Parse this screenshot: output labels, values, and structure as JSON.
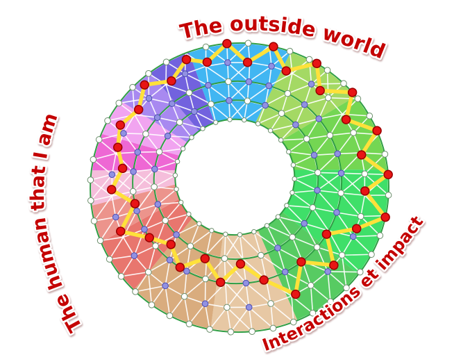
{
  "page": {
    "background": "#ffffff"
  },
  "diagram": {
    "labels": {
      "top": "The outside world",
      "left": "The human that I am",
      "bottom_right": "Interactions et impact"
    },
    "label_style": {
      "color": "#c40000",
      "outline": "#ffffff"
    },
    "colors": {
      "mesh_line": "#ffffff",
      "ring_outline": "#2f9e44",
      "path_highlight": "#ffe13a",
      "hole_fill": "#ffffff",
      "node_white_fill": "#ffffff",
      "node_white_stroke": "#6b8e6b",
      "node_purple_fill": "#9191e2",
      "node_purple_stroke": "#4c4cb0",
      "node_red_fill": "#e81515",
      "node_red_stroke": "#990000"
    },
    "sectors": [
      {
        "name": "sky-blue",
        "color": "#41b6f2",
        "start": -105,
        "end": -65
      },
      {
        "name": "yellow-green",
        "color": "#a4d964",
        "start": -65,
        "end": -34
      },
      {
        "name": "light-green",
        "color": "#74d653",
        "start": -34,
        "end": -2
      },
      {
        "name": "bright-green",
        "color": "#3fdf69",
        "start": -2,
        "end": 42
      },
      {
        "name": "green",
        "color": "#57cb62",
        "start": 42,
        "end": 72
      },
      {
        "name": "light-tan",
        "color": "#e7c8a4",
        "start": 72,
        "end": 106
      },
      {
        "name": "tan",
        "color": "#d9ac7e",
        "start": 106,
        "end": 140
      },
      {
        "name": "salmon",
        "color": "#e8766e",
        "start": 140,
        "end": 163
      },
      {
        "name": "light-salmon",
        "color": "#ec948c",
        "start": 163,
        "end": 178
      },
      {
        "name": "light-pink",
        "color": "#f5bedb",
        "start": 178,
        "end": 192
      },
      {
        "name": "magenta",
        "color": "#ee68d4",
        "start": 192,
        "end": 207
      },
      {
        "name": "orchid",
        "color": "#f1a4f0",
        "start": 207,
        "end": 222
      },
      {
        "name": "light-purple",
        "color": "#a889f0",
        "start": 222,
        "end": 238
      },
      {
        "name": "purple",
        "color": "#7262de",
        "start": 238,
        "end": 255
      }
    ],
    "rings": [
      {
        "rf": 0.4,
        "count": 26,
        "node_radius": 3.2,
        "pattern": "plain"
      },
      {
        "rf": 0.55,
        "count": 28,
        "node_radius": 4.3,
        "pattern": "mixed"
      },
      {
        "rf": 0.7,
        "count": 32,
        "node_radius": 4.3,
        "pattern": "purple"
      },
      {
        "rf": 0.85,
        "count": 36,
        "node_radius": 4.3,
        "pattern": "mixed"
      },
      {
        "rf": 1.0,
        "count": 44,
        "node_radius": 4.3,
        "pattern": "plain"
      }
    ],
    "green_ring_fractions": [
      0.4,
      0.55,
      0.7,
      1.0
    ],
    "highlight_path": [
      [
        -90,
        1.0
      ],
      [
        -81,
        0.85
      ],
      [
        -72,
        1.0
      ],
      [
        -63,
        0.85
      ],
      [
        -54,
        1.0
      ],
      [
        -45,
        0.85
      ],
      [
        -36,
        1.0
      ],
      [
        -27,
        0.85
      ],
      [
        -18,
        1.0
      ],
      [
        -9,
        0.85
      ],
      [
        0,
        1.0
      ],
      [
        8,
        0.85
      ],
      [
        17,
        1.0
      ],
      [
        26,
        0.85
      ],
      [
        36,
        0.7
      ],
      [
        46,
        0.85
      ],
      [
        57,
        0.7
      ],
      [
        68,
        0.85
      ],
      [
        80,
        0.7
      ],
      [
        92,
        0.58
      ],
      [
        104,
        0.7
      ],
      [
        116,
        0.58
      ],
      [
        128,
        0.7
      ],
      [
        140,
        0.62
      ],
      [
        152,
        0.7
      ],
      [
        163,
        0.85
      ],
      [
        173,
        0.7
      ],
      [
        183,
        0.85
      ],
      [
        193,
        0.78
      ],
      [
        203,
        0.85
      ],
      [
        213,
        0.9
      ],
      [
        223,
        0.85
      ],
      [
        233,
        0.95
      ],
      [
        243,
        0.85
      ],
      [
        253,
        0.95
      ],
      [
        261,
        0.88
      ],
      [
        270,
        1.0
      ]
    ]
  }
}
